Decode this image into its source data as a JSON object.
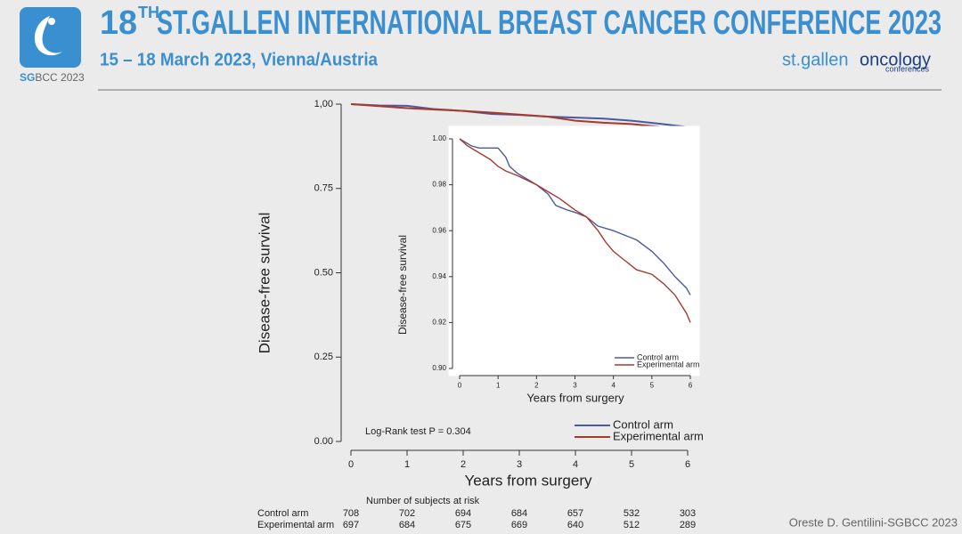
{
  "header": {
    "logo_sg": "SG",
    "logo_rest": "BCC 2023",
    "title_number": "18",
    "title_sup": "TH",
    "title_rest": "ST.GALLEN INTERNATIONAL BREAST CANCER CONFERENCE 2023",
    "subtitle": "15 – 18 March 2023, Vienna/Austria",
    "brand_a": "st.gallen",
    "brand_b": "oncology",
    "brand_c": "conferences"
  },
  "credit": "Oreste D. Gentilini-SGBCC 2023",
  "chart_data": [
    {
      "type": "line",
      "x_label": "Years from surgery",
      "y_label": "Disease-free survival",
      "annotation": "Log-Rank test P = 0.304",
      "xlim": [
        0,
        6
      ],
      "xticks": [
        0,
        1,
        2,
        3,
        4,
        5,
        6
      ],
      "ylim": [
        0,
        1
      ],
      "yticks": [
        {
          "value": 0,
          "label": "0.00"
        },
        {
          "value": 0.25,
          "label": "0.25"
        },
        {
          "value": 0.5,
          "label": "0.50"
        },
        {
          "value": 0.75,
          "label": "0.75"
        },
        {
          "value": 1,
          "label": "1,00"
        }
      ],
      "legend": "bottom-right",
      "series": [
        {
          "name": "Control arm",
          "color": "#4a5aa0",
          "x": [
            0,
            0.5,
            1,
            1.5,
            2,
            2.5,
            3,
            3.5,
            4,
            4.5,
            5,
            5.5,
            6
          ],
          "values": [
            1.0,
            0.996,
            0.995,
            0.985,
            0.98,
            0.971,
            0.968,
            0.963,
            0.96,
            0.957,
            0.951,
            0.942,
            0.932
          ]
        },
        {
          "name": "Experimental arm",
          "color": "#a8392b",
          "x": [
            0,
            0.5,
            1,
            1.5,
            2,
            2.5,
            3,
            3.5,
            4,
            4.5,
            5,
            5.5,
            6
          ],
          "values": [
            1.0,
            0.994,
            0.988,
            0.984,
            0.98,
            0.975,
            0.969,
            0.963,
            0.951,
            0.945,
            0.941,
            0.933,
            0.92
          ]
        }
      ],
      "risk_table": {
        "title": "Number of subjects at risk",
        "rows": [
          {
            "name": "Control arm",
            "values": [
              "708",
              "702",
              "694",
              "684",
              "657",
              "532",
              "303"
            ]
          },
          {
            "name": "Experimental arm",
            "values": [
              "697",
              "684",
              "675",
              "669",
              "640",
              "512",
              "289"
            ]
          }
        ]
      }
    },
    {
      "type": "line",
      "x_label": "Years from surgery",
      "y_label": "Disease-free survival",
      "xlim": [
        0,
        6
      ],
      "xticks": [
        0,
        1,
        2,
        3,
        4,
        5,
        6
      ],
      "ylim": [
        0.9,
        1
      ],
      "yticks": [
        {
          "value": 0.9,
          "label": "0.90"
        },
        {
          "value": 0.92,
          "label": "0.92"
        },
        {
          "value": 0.94,
          "label": "0.94"
        },
        {
          "value": 0.96,
          "label": "0.96"
        },
        {
          "value": 0.98,
          "label": "0.98"
        },
        {
          "value": 1,
          "label": "1.00"
        }
      ],
      "legend": "bottom-right",
      "series": [
        {
          "name": "Control arm",
          "color": "#4a5aa0",
          "x": [
            0,
            0.1,
            0.3,
            0.5,
            0.8,
            1.0,
            1.2,
            1.3,
            1.5,
            1.7,
            2.0,
            2.3,
            2.5,
            2.8,
            3.0,
            3.3,
            3.6,
            4.0,
            4.3,
            4.6,
            5.0,
            5.3,
            5.6,
            5.9,
            6.0
          ],
          "values": [
            1.0,
            0.999,
            0.997,
            0.996,
            0.996,
            0.996,
            0.992,
            0.988,
            0.985,
            0.983,
            0.98,
            0.976,
            0.971,
            0.969,
            0.968,
            0.966,
            0.962,
            0.96,
            0.958,
            0.956,
            0.951,
            0.946,
            0.94,
            0.935,
            0.932
          ]
        },
        {
          "name": "Experimental arm",
          "color": "#a8392b",
          "x": [
            0,
            0.2,
            0.5,
            0.8,
            1.0,
            1.2,
            1.5,
            2.0,
            2.3,
            2.6,
            3.0,
            3.3,
            3.6,
            3.8,
            4.0,
            4.3,
            4.6,
            5.0,
            5.3,
            5.6,
            5.9,
            6.0
          ],
          "values": [
            1.0,
            0.997,
            0.994,
            0.991,
            0.988,
            0.986,
            0.984,
            0.98,
            0.977,
            0.974,
            0.969,
            0.966,
            0.96,
            0.955,
            0.951,
            0.947,
            0.943,
            0.941,
            0.937,
            0.932,
            0.924,
            0.92
          ]
        }
      ]
    }
  ]
}
